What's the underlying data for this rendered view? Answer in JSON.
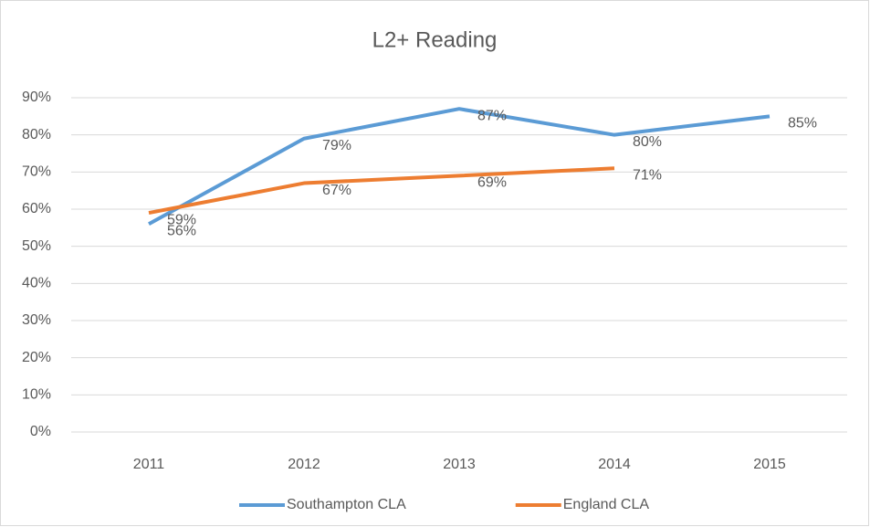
{
  "chart_data": {
    "type": "line",
    "title": "L2+ Reading",
    "categories": [
      "2011",
      "2012",
      "2013",
      "2014",
      "2015"
    ],
    "series": [
      {
        "name": "Southampton CLA",
        "color": "#5b9bd5",
        "values": [
          56,
          79,
          87,
          80,
          85
        ],
        "value_labels": [
          "56%",
          "79%",
          "87%",
          "80%",
          "85%"
        ]
      },
      {
        "name": "England CLA",
        "color": "#ed7d31",
        "values": [
          59,
          67,
          69,
          71,
          null
        ],
        "value_labels": [
          "59%",
          "67%",
          "69%",
          "71%",
          null
        ]
      }
    ],
    "ylim": [
      0,
      90
    ],
    "yticks": [
      {
        "value": 0,
        "label": "0%"
      },
      {
        "value": 10,
        "label": "10%"
      },
      {
        "value": 20,
        "label": "20%"
      },
      {
        "value": 30,
        "label": "30%"
      },
      {
        "value": 40,
        "label": "40%"
      },
      {
        "value": 50,
        "label": "50%"
      },
      {
        "value": 60,
        "label": "60%"
      },
      {
        "value": 70,
        "label": "70%"
      },
      {
        "value": 80,
        "label": "80%"
      },
      {
        "value": 90,
        "label": "90%"
      }
    ],
    "grid": true,
    "legend": "bottom"
  }
}
